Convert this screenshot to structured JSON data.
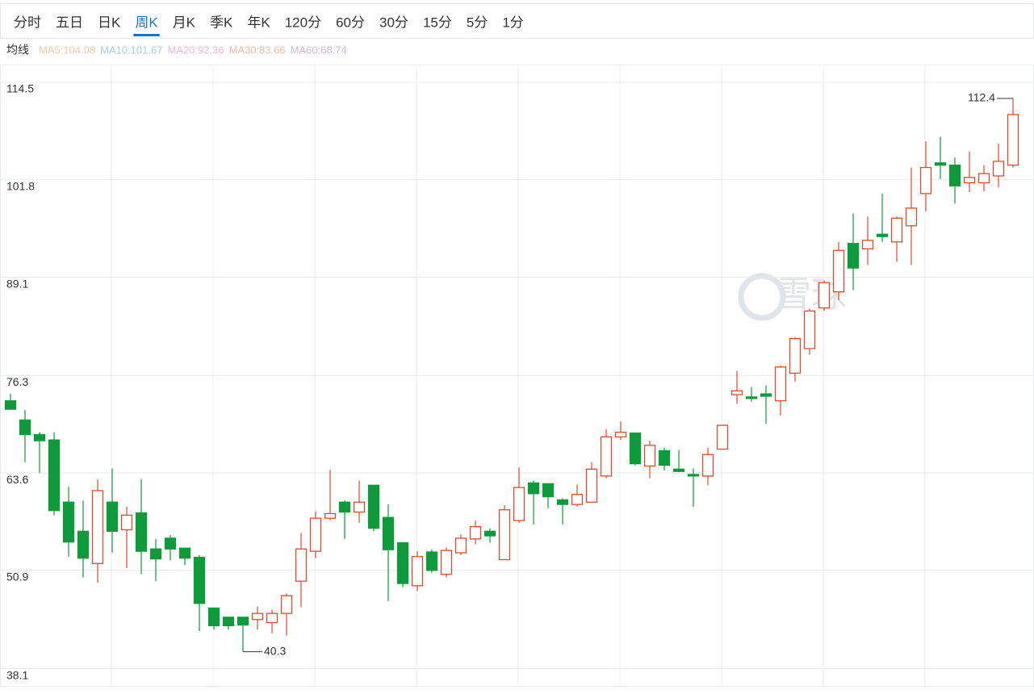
{
  "tabs": [
    "分时",
    "五日",
    "日K",
    "周K",
    "月K",
    "季K",
    "年K",
    "120分",
    "60分",
    "30分",
    "15分",
    "5分",
    "1分"
  ],
  "active_tab": "周K",
  "ma_label": "均线",
  "moving_averages": [
    {
      "label": "MA5:104.08",
      "color": "#f8c9a0"
    },
    {
      "label": "MA10:101.67",
      "color": "#a9cde8"
    },
    {
      "label": "MA20:92.36",
      "color": "#f4b6d8"
    },
    {
      "label": "MA30:83.66",
      "color": "#f5b8a8"
    },
    {
      "label": "MA60:68.74",
      "color": "#c9b6e4"
    }
  ],
  "watermark": "雪球",
  "chart_data": {
    "type": "candlestick",
    "ylim": [
      35.85,
      116.6
    ],
    "yticks": [
      114.5,
      101.8,
      89.1,
      76.3,
      63.6,
      50.9,
      38.1
    ],
    "grid": true,
    "up_color": "#dd4a2f",
    "down_color": "#0e9a3b",
    "annotations": [
      112.4,
      40.3
    ],
    "open": [
      73,
      70.5,
      68.6,
      67.9,
      59.8,
      56,
      51.8,
      59.8,
      56.2,
      58.4,
      53.7,
      55.1,
      53.8,
      52.6,
      46,
      44.8,
      44.8,
      44.5,
      44.1,
      45.3,
      49.5,
      53.4,
      57.7,
      59.8,
      58.5,
      62,
      57.8,
      54.5,
      48.9,
      53.3,
      50.4,
      53.2,
      55,
      56,
      52.3,
      57.4,
      62.3,
      62.2,
      60.1,
      59.5,
      59.8,
      63.2,
      68.3,
      68.8,
      64.5,
      66.5,
      64.1,
      63.4,
      63.2,
      66.7,
      73.8,
      73.5,
      73.9,
      73,
      76.6,
      79.8,
      85.1,
      87.2,
      93.5,
      92.8,
      94.7,
      93.7,
      95.8,
      100,
      104,
      103.7,
      101.4,
      101.4,
      102.3,
      103.7
    ],
    "high": [
      73.9,
      71.8,
      68.9,
      68.9,
      61.8,
      60,
      62.8,
      64.2,
      59.2,
      62.8,
      55,
      55.5,
      53.8,
      52.9,
      46,
      44.8,
      44.8,
      46.2,
      45.8,
      47.9,
      55.8,
      58.6,
      64,
      60,
      62.6,
      62,
      59.5,
      54.5,
      53.4,
      53.6,
      53.9,
      55.6,
      57.4,
      56.4,
      59.4,
      64.3,
      62.6,
      62.2,
      60.3,
      62.1,
      65,
      69.3,
      70.3,
      68.8,
      67.8,
      66.9,
      66.6,
      64.2,
      66.9,
      69.8,
      76.9,
      74.8,
      75,
      77.6,
      81.3,
      85,
      88.7,
      93.7,
      97.4,
      97,
      100,
      97,
      103.4,
      106.8,
      107.4,
      104.7,
      105.5,
      103.7,
      106.5,
      112.4
    ],
    "low": [
      71.9,
      65,
      63.6,
      58.1,
      52.7,
      50,
      49.3,
      53.2,
      51.2,
      50.4,
      49.5,
      52.2,
      51.6,
      43,
      43.2,
      43.2,
      40.3,
      43.2,
      42.7,
      42.4,
      46.1,
      52.5,
      57.4,
      55,
      57.1,
      56,
      46.9,
      48.7,
      48.2,
      50.6,
      50,
      52.9,
      54.3,
      54.5,
      52.3,
      57.1,
      56.9,
      59,
      56.9,
      59.2,
      59.8,
      62.9,
      67.9,
      64.6,
      62.9,
      63.9,
      63.7,
      59.2,
      62,
      66.7,
      72.6,
      72.9,
      70,
      71.1,
      75.5,
      79,
      84.7,
      86.1,
      87.4,
      90.7,
      93.7,
      91.1,
      90.7,
      97.7,
      101.9,
      98.7,
      100.2,
      100.3,
      100.8,
      103.4
    ],
    "close": [
      71.9,
      68.6,
      67.8,
      58.7,
      54.6,
      52.5,
      61.3,
      56,
      58.1,
      53.4,
      52.4,
      53.7,
      52.5,
      46.6,
      43.7,
      43.7,
      43.8,
      45.3,
      45.3,
      47.6,
      53.7,
      57.7,
      58.3,
      58.5,
      59.8,
      56.4,
      53.6,
      49.2,
      52.7,
      50.9,
      53.5,
      55.1,
      56.6,
      55.4,
      58.8,
      61.7,
      60.9,
      60.5,
      59.5,
      60.8,
      64.1,
      68.3,
      68.9,
      64.8,
      67.2,
      64.6,
      63.8,
      63.2,
      66,
      69.8,
      74.3,
      73.3,
      73.6,
      77.4,
      81.1,
      84.7,
      88.4,
      92.6,
      90.3,
      93.9,
      94.4,
      96.8,
      98.1,
      103.4,
      103.7,
      101,
      102.1,
      102.6,
      104.2,
      110.3
    ]
  }
}
